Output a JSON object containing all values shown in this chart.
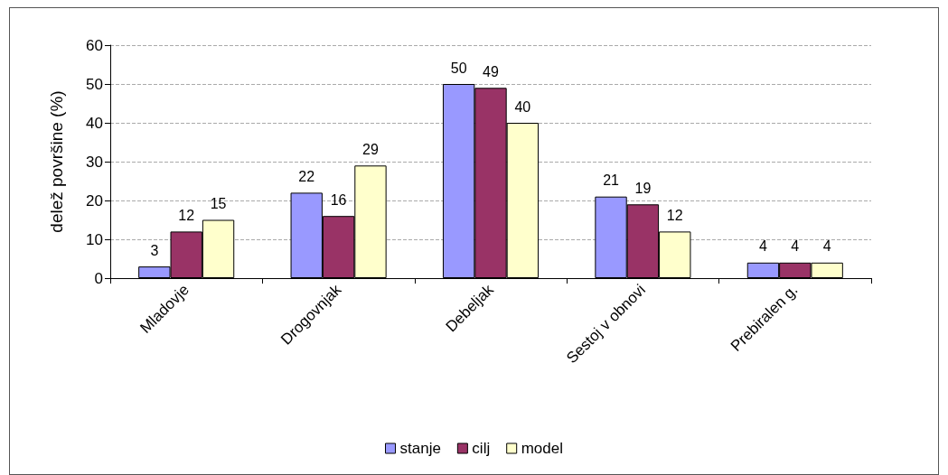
{
  "chart_data": {
    "type": "bar",
    "ylabel": "delež površine (%)",
    "categories": [
      "Mladovje",
      "Drogovnjak",
      "Debeljak",
      "Sestoj v obnovi",
      "Prebiralen g."
    ],
    "series": [
      {
        "name": "stanje",
        "color": "#9999ff",
        "values": [
          3,
          22,
          50,
          21,
          4
        ]
      },
      {
        "name": "cilj",
        "color": "#993366",
        "values": [
          12,
          16,
          49,
          19,
          4
        ]
      },
      {
        "name": "model",
        "color": "#ffffcc",
        "values": [
          15,
          29,
          40,
          12,
          4
        ]
      }
    ],
    "ylim": [
      0,
      60
    ],
    "yticks": [
      0,
      10,
      20,
      30,
      40,
      50,
      60
    ],
    "grid": "y",
    "legend": "bottom",
    "data_labels": true
  }
}
